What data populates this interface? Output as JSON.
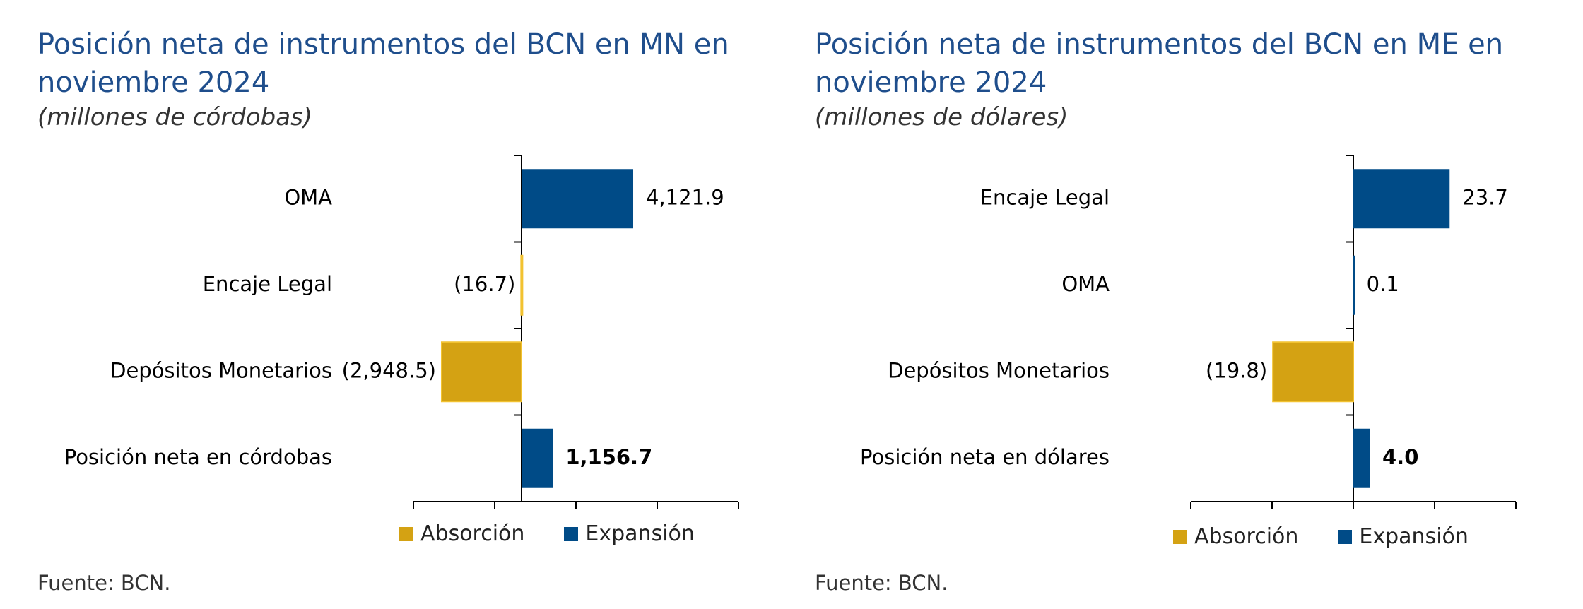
{
  "chart_data": [
    {
      "type": "bar",
      "orientation": "horizontal",
      "title": "Posición neta de instrumentos del BCN en MN en noviembre 2024",
      "subtitle": "(millones de córdobas)",
      "source": "Fuente: BCN.",
      "categories": [
        "OMA",
        "Encaje Legal",
        "Depósitos Monetarios",
        "Posición neta en córdobas"
      ],
      "values": [
        4121.9,
        -16.7,
        -2948.5,
        1156.7
      ],
      "value_labels": [
        "4,121.9",
        "(16.7)",
        "(2,948.5)",
        "1,156.7"
      ],
      "bold_labels": [
        false,
        false,
        false,
        true
      ],
      "series_color": [
        "expansion",
        "absorption",
        "absorption",
        "expansion"
      ],
      "xlim": [
        -4000,
        8000
      ],
      "grid": false,
      "legend": {
        "position": "bottom",
        "entries": [
          {
            "label": "Absorción",
            "color": "#D4A213"
          },
          {
            "label": "Expansión",
            "color": "#004B87"
          }
        ]
      }
    },
    {
      "type": "bar",
      "orientation": "horizontal",
      "title": "Posición neta de instrumentos del BCN en ME en noviembre 2024",
      "subtitle": "(millones de dólares)",
      "source": "Fuente: BCN.",
      "categories": [
        "Encaje Legal",
        "OMA",
        "Depósitos Monetarios",
        "Posición neta en dólares"
      ],
      "values": [
        23.7,
        0.1,
        -19.8,
        4.0
      ],
      "value_labels": [
        "23.7",
        "0.1",
        "(19.8)",
        "4.0"
      ],
      "bold_labels": [
        false,
        false,
        false,
        true
      ],
      "series_color": [
        "expansion",
        "expansion",
        "absorption",
        "expansion"
      ],
      "xlim": [
        -40,
        40
      ],
      "grid": false,
      "legend": {
        "position": "bottom",
        "entries": [
          {
            "label": "Absorción",
            "color": "#D4A213"
          },
          {
            "label": "Expansión",
            "color": "#004B87"
          }
        ]
      }
    }
  ],
  "colors": {
    "expansion": "#004B87",
    "absorption": "#D4A213",
    "title": "#1F4E8C"
  }
}
